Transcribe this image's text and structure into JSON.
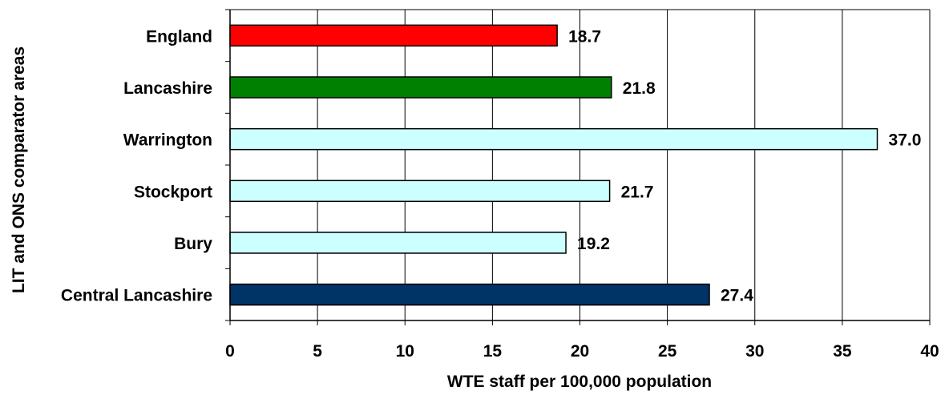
{
  "chart_data": {
    "type": "bar",
    "orientation": "horizontal",
    "categories": [
      "England",
      "Lancashire",
      "Warrington",
      "Stockport",
      "Bury",
      "Central Lancashire"
    ],
    "values": [
      18.7,
      21.8,
      37.0,
      21.7,
      19.2,
      27.4
    ],
    "value_labels": [
      "18.7",
      "21.8",
      "37.0",
      "21.7",
      "19.2",
      "27.4"
    ],
    "bar_colors": [
      "#ff0000",
      "#008000",
      "#ccffff",
      "#ccffff",
      "#ccffff",
      "#003366"
    ],
    "xlabel": "WTE staff per 100,000 population",
    "ylabel": "LIT and ONS comparator areas",
    "xlim": [
      0,
      40
    ],
    "xticks": [
      0,
      5,
      10,
      15,
      20,
      25,
      30,
      35,
      40
    ],
    "grid": "vertical",
    "legend": "none"
  }
}
